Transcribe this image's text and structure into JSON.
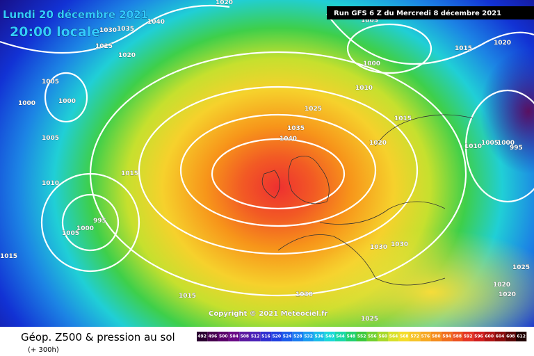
{
  "header": {
    "date": "Lundi 20 décembre 2021",
    "time": "20:00 locale",
    "run": "Run GFS 6 Z du Mercredi 8 décembre 2021"
  },
  "map": {
    "isobar_labels": [
      1020,
      1035,
      1040,
      1030,
      1025,
      1020,
      1005,
      1000,
      1000,
      1005,
      1015,
      1010,
      995,
      1000,
      1005,
      1015,
      1015,
      1025,
      1035,
      1040,
      1010,
      1000,
      1015,
      1020,
      1015,
      1020,
      1010,
      1005,
      1000,
      995,
      1030,
      1030,
      1025,
      1020,
      1020,
      1030,
      1025,
      1005
    ]
  },
  "copyright": "Copyright © 2021 Meteociel.fr",
  "footer": {
    "title": "Géop. Z500 & pression au sol",
    "lead": "(+ 300h)"
  },
  "legend": {
    "labels": [
      492,
      496,
      500,
      504,
      508,
      512,
      516,
      520,
      524,
      528,
      532,
      536,
      540,
      544,
      548,
      552,
      556,
      560,
      564,
      568,
      572,
      576,
      580,
      584,
      588,
      592,
      596,
      600,
      604,
      608,
      612
    ]
  }
}
